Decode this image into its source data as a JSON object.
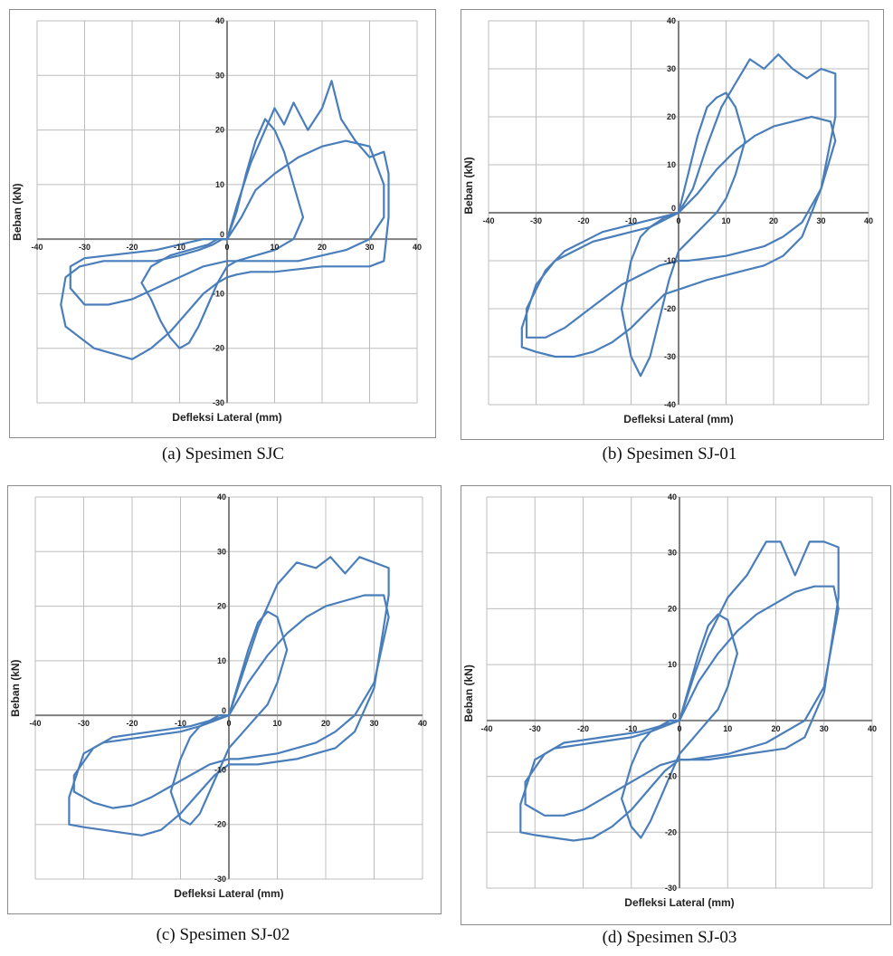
{
  "chart_data": [
    {
      "type": "line",
      "title": "",
      "caption": "(a) Spesimen SJC",
      "xlabel": "Defleksi Lateral (mm)",
      "ylabel": "Beban (kN)",
      "xlim": [
        -40,
        40
      ],
      "ylim": [
        -30,
        40
      ],
      "x_ticks": [
        -40,
        -30,
        -20,
        -10,
        0,
        10,
        20,
        30,
        40
      ],
      "y_ticks": [
        -30,
        -20,
        -10,
        0,
        10,
        20,
        30,
        40
      ],
      "grid": true,
      "color": "#4a7ebb",
      "series": [
        {
          "x": [
            0,
            2,
            5,
            8,
            10,
            12,
            14,
            17,
            20,
            22,
            24,
            27,
            30,
            33,
            34,
            34,
            33,
            30,
            25,
            20,
            15,
            10,
            5,
            2,
            0,
            -2,
            -5,
            -8,
            -12,
            -16,
            -20,
            -24,
            -28,
            -31,
            -34,
            -35,
            -34,
            -31,
            -26,
            -20,
            -15,
            -10,
            -6,
            -3,
            -1,
            0
          ],
          "y": [
            0,
            6,
            14,
            20,
            24,
            21,
            25,
            20,
            24,
            29,
            22,
            18,
            15,
            16,
            12,
            4,
            -4,
            -5,
            -5,
            -5,
            -5.5,
            -6,
            -6,
            -6.5,
            -7,
            -8,
            -10,
            -13,
            -17,
            -20,
            -22,
            -21,
            -20,
            -18,
            -16,
            -12,
            -7,
            -5,
            -4,
            -4,
            -4,
            -3,
            -2,
            -1,
            0,
            0
          ]
        },
        {
          "x": [
            0,
            3,
            6,
            10,
            15,
            20,
            25,
            30,
            33,
            33,
            30,
            25,
            20,
            15,
            10,
            5,
            0,
            -5,
            -10,
            -15,
            -20,
            -25,
            -30,
            -33,
            -33,
            -30,
            -25,
            -20,
            -15,
            -10,
            -5,
            0
          ],
          "y": [
            0,
            4,
            9,
            12,
            15,
            17,
            18,
            17,
            10,
            4,
            0,
            -2,
            -3,
            -4,
            -4,
            -4,
            -4,
            -5,
            -7,
            -9,
            -11,
            -12,
            -12,
            -9,
            -5,
            -3.5,
            -3,
            -2.5,
            -2,
            -1,
            0,
            0
          ]
        },
        {
          "x": [
            0,
            2,
            4,
            6,
            8,
            10,
            12,
            14,
            16,
            14,
            10,
            6,
            2,
            0,
            -2,
            -4,
            -6,
            -8,
            -10,
            -12,
            -14,
            -16,
            -18,
            -16,
            -12,
            -8,
            -4,
            -2,
            0
          ],
          "y": [
            0,
            5,
            12,
            18,
            22,
            20,
            16,
            10,
            4,
            0,
            -2,
            -3,
            -4,
            -5,
            -8,
            -12,
            -16,
            -19,
            -20,
            -18,
            -15,
            -11,
            -8,
            -5,
            -3,
            -2,
            -1,
            0,
            0
          ]
        }
      ]
    },
    {
      "type": "line",
      "title": "",
      "caption": "(b) Spesimen SJ-01",
      "xlabel": "Defleksi Lateral (mm)",
      "ylabel": "Beban (kN)",
      "xlim": [
        -40,
        40
      ],
      "ylim": [
        -40,
        40
      ],
      "x_ticks": [
        -40,
        -30,
        -20,
        -10,
        0,
        10,
        20,
        30,
        40
      ],
      "y_ticks": [
        -40,
        -30,
        -20,
        -10,
        0,
        10,
        20,
        30,
        40
      ],
      "grid": true,
      "color": "#4a7ebb",
      "series": [
        {
          "x": [
            0,
            3,
            6,
            9,
            12,
            15,
            18,
            21,
            24,
            27,
            30,
            33,
            33,
            30,
            26,
            22,
            18,
            14,
            10,
            6,
            3,
            0,
            -3,
            -6,
            -10,
            -14,
            -18,
            -22,
            -26,
            -30,
            -33,
            -33,
            -30,
            -26,
            -22,
            -18,
            -14,
            -10,
            -6,
            -3,
            0
          ],
          "y": [
            0,
            5,
            14,
            22,
            27,
            32,
            30,
            33,
            30,
            28,
            30,
            29,
            20,
            5,
            -5,
            -9,
            -11,
            -12,
            -13,
            -14,
            -15,
            -16,
            -17,
            -20,
            -24,
            -27,
            -29,
            -30,
            -30,
            -29,
            -28,
            -24,
            -15,
            -10,
            -8,
            -6,
            -5,
            -4,
            -3,
            -1,
            0
          ]
        },
        {
          "x": [
            0,
            4,
            8,
            12,
            16,
            20,
            24,
            28,
            32,
            33,
            30,
            26,
            22,
            18,
            14,
            10,
            6,
            2,
            0,
            -4,
            -8,
            -12,
            -16,
            -20,
            -24,
            -28,
            -32,
            -32,
            -28,
            -24,
            -20,
            -16,
            -12,
            -8,
            -4,
            0
          ],
          "y": [
            0,
            4,
            9,
            13,
            16,
            18,
            19,
            20,
            19,
            15,
            5,
            -2,
            -5,
            -7,
            -8,
            -9,
            -9.5,
            -10,
            -10,
            -11,
            -13,
            -15,
            -18,
            -21,
            -24,
            -26,
            -26,
            -20,
            -12,
            -8,
            -6,
            -4,
            -3,
            -2,
            -1,
            0
          ]
        },
        {
          "x": [
            0,
            2,
            4,
            6,
            8,
            10,
            12,
            14,
            12,
            10,
            8,
            6,
            4,
            2,
            0,
            -2,
            -4,
            -6,
            -8,
            -10,
            -12,
            -10,
            -8,
            -6,
            -4,
            -2,
            0
          ],
          "y": [
            0,
            8,
            16,
            22,
            24,
            25,
            22,
            15,
            8,
            3,
            0,
            -2,
            -4,
            -6,
            -8,
            -14,
            -22,
            -30,
            -34,
            -30,
            -20,
            -10,
            -5,
            -3,
            -2,
            -1,
            0
          ]
        }
      ]
    },
    {
      "type": "line",
      "title": "",
      "caption": "(c) Spesimen SJ-02",
      "xlabel": "Defleksi Lateral (mm)",
      "ylabel": "Beban (kN)",
      "xlim": [
        -40,
        40
      ],
      "ylim": [
        -30,
        40
      ],
      "x_ticks": [
        -40,
        -30,
        -20,
        -10,
        0,
        10,
        20,
        30,
        40
      ],
      "y_ticks": [
        -30,
        -20,
        -10,
        0,
        10,
        20,
        30,
        40
      ],
      "grid": true,
      "color": "#4a7ebb",
      "series": [
        {
          "x": [
            0,
            3,
            6,
            10,
            14,
            18,
            21,
            24,
            27,
            30,
            33,
            33,
            30,
            26,
            22,
            18,
            14,
            10,
            6,
            2,
            0,
            -3,
            -6,
            -10,
            -14,
            -18,
            -22,
            -26,
            -30,
            -33,
            -33,
            -30,
            -26,
            -22,
            -18,
            -14,
            -10,
            -6,
            -3,
            0
          ],
          "y": [
            0,
            8,
            16,
            24,
            28,
            27,
            29,
            26,
            29,
            28,
            27,
            22,
            5,
            -3,
            -6,
            -7,
            -8,
            -8.5,
            -9,
            -9,
            -9,
            -11,
            -14,
            -18,
            -21,
            -22,
            -21.5,
            -21,
            -20.5,
            -20,
            -15,
            -7,
            -5,
            -4.5,
            -4,
            -3.5,
            -3,
            -2,
            -1,
            0
          ]
        },
        {
          "x": [
            0,
            4,
            8,
            12,
            16,
            20,
            24,
            28,
            32,
            33,
            30,
            26,
            22,
            18,
            14,
            10,
            6,
            2,
            0,
            -4,
            -8,
            -12,
            -16,
            -20,
            -24,
            -28,
            -32,
            -32,
            -28,
            -24,
            -20,
            -16,
            -12,
            -8,
            -4,
            0
          ],
          "y": [
            0,
            6,
            11,
            15,
            18,
            20,
            21,
            22,
            22,
            18,
            6,
            0,
            -3,
            -5,
            -6,
            -7,
            -7.5,
            -8,
            -8,
            -9,
            -11,
            -13,
            -15,
            -16.5,
            -17,
            -16,
            -14,
            -11,
            -6,
            -4,
            -3.5,
            -3,
            -2.5,
            -2,
            -1,
            0
          ]
        },
        {
          "x": [
            0,
            2,
            4,
            6,
            8,
            10,
            12,
            10,
            8,
            6,
            4,
            2,
            0,
            -2,
            -4,
            -6,
            -8,
            -10,
            -12,
            -10,
            -8,
            -6,
            -4,
            -2,
            0
          ],
          "y": [
            0,
            6,
            12,
            17,
            19,
            18,
            12,
            6,
            2,
            0,
            -2,
            -4,
            -6,
            -10,
            -14,
            -18,
            -20,
            -19,
            -14,
            -8,
            -4,
            -2,
            -1,
            0,
            0
          ]
        }
      ]
    },
    {
      "type": "line",
      "title": "",
      "caption": "(d) Spesimen SJ-03",
      "xlabel": "Defleksi Lateral (mm)",
      "ylabel": "Beban (kN)",
      "xlim": [
        -40,
        40
      ],
      "ylim": [
        -30,
        40
      ],
      "x_ticks": [
        -40,
        -30,
        -20,
        -10,
        0,
        10,
        20,
        30,
        40
      ],
      "y_ticks": [
        -30,
        -20,
        -10,
        0,
        10,
        20,
        30,
        40
      ],
      "grid": true,
      "color": "#4a7ebb",
      "series": [
        {
          "x": [
            0,
            3,
            6,
            10,
            14,
            18,
            21,
            24,
            27,
            30,
            33,
            33,
            30,
            26,
            22,
            18,
            14,
            10,
            6,
            2,
            0,
            -3,
            -6,
            -10,
            -14,
            -18,
            -22,
            -26,
            -30,
            -33,
            -33,
            -30,
            -26,
            -22,
            -18,
            -14,
            -10,
            -6,
            -3,
            0
          ],
          "y": [
            0,
            8,
            15,
            22,
            26,
            32,
            32,
            26,
            32,
            32,
            31,
            22,
            5,
            -3,
            -5,
            -5.5,
            -6,
            -6.5,
            -7,
            -7,
            -7,
            -9,
            -12,
            -16,
            -19,
            -21,
            -21.5,
            -21,
            -20.5,
            -20,
            -15,
            -7,
            -5,
            -4.5,
            -4,
            -3.5,
            -3,
            -2,
            -1,
            0
          ]
        },
        {
          "x": [
            0,
            4,
            8,
            12,
            16,
            20,
            24,
            28,
            32,
            33,
            30,
            26,
            22,
            18,
            14,
            10,
            6,
            2,
            0,
            -4,
            -8,
            -12,
            -16,
            -20,
            -24,
            -28,
            -32,
            -32,
            -28,
            -24,
            -20,
            -16,
            -12,
            -8,
            -4,
            0
          ],
          "y": [
            0,
            7,
            12,
            16,
            19,
            21,
            23,
            24,
            24,
            20,
            6,
            0,
            -2,
            -4,
            -5,
            -6,
            -6.5,
            -7,
            -7,
            -8,
            -10,
            -12,
            -14,
            -16,
            -17,
            -17,
            -15,
            -11,
            -6,
            -4,
            -3.5,
            -3,
            -2.5,
            -2,
            -1,
            0
          ]
        },
        {
          "x": [
            0,
            2,
            4,
            6,
            8,
            10,
            12,
            10,
            8,
            6,
            4,
            2,
            0,
            -2,
            -4,
            -6,
            -8,
            -10,
            -12,
            -10,
            -8,
            -6,
            -4,
            -2,
            0
          ],
          "y": [
            0,
            6,
            12,
            17,
            19,
            18,
            12,
            6,
            2,
            0,
            -2,
            -4,
            -6,
            -10,
            -14,
            -18,
            -21,
            -19,
            -14,
            -8,
            -4,
            -2,
            -1,
            0,
            0
          ]
        }
      ]
    }
  ]
}
